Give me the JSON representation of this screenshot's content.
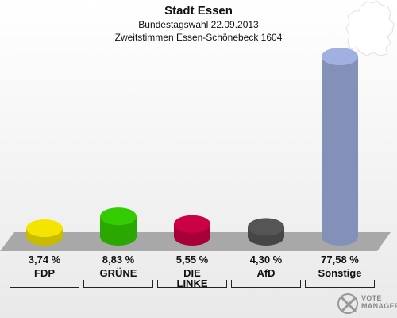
{
  "header": {
    "title": "Stadt Essen",
    "subtitle1": "Bundestagswahl 22.09.2013",
    "subtitle2": "Zweitstimmen Essen-Schönebeck 1604"
  },
  "chart_data": {
    "type": "bar",
    "categories": [
      "FDP",
      "GRÜNE",
      "DIE LINKE",
      "AfD",
      "Sonstige"
    ],
    "values": [
      3.74,
      8.83,
      5.55,
      4.3,
      77.58
    ],
    "labels": [
      "3,74 %",
      "8,83 %",
      "5,55 %",
      "4,30 %",
      "77,58 %"
    ],
    "colors": [
      "#f3e500",
      "#33cc00",
      "#cc0044",
      "#555555",
      "#a0b0e0"
    ],
    "ylim": [
      0,
      80
    ],
    "grid": false,
    "title": "Stadt Essen"
  },
  "logo": {
    "line1": "VOTE",
    "line2": "MANAGER"
  }
}
